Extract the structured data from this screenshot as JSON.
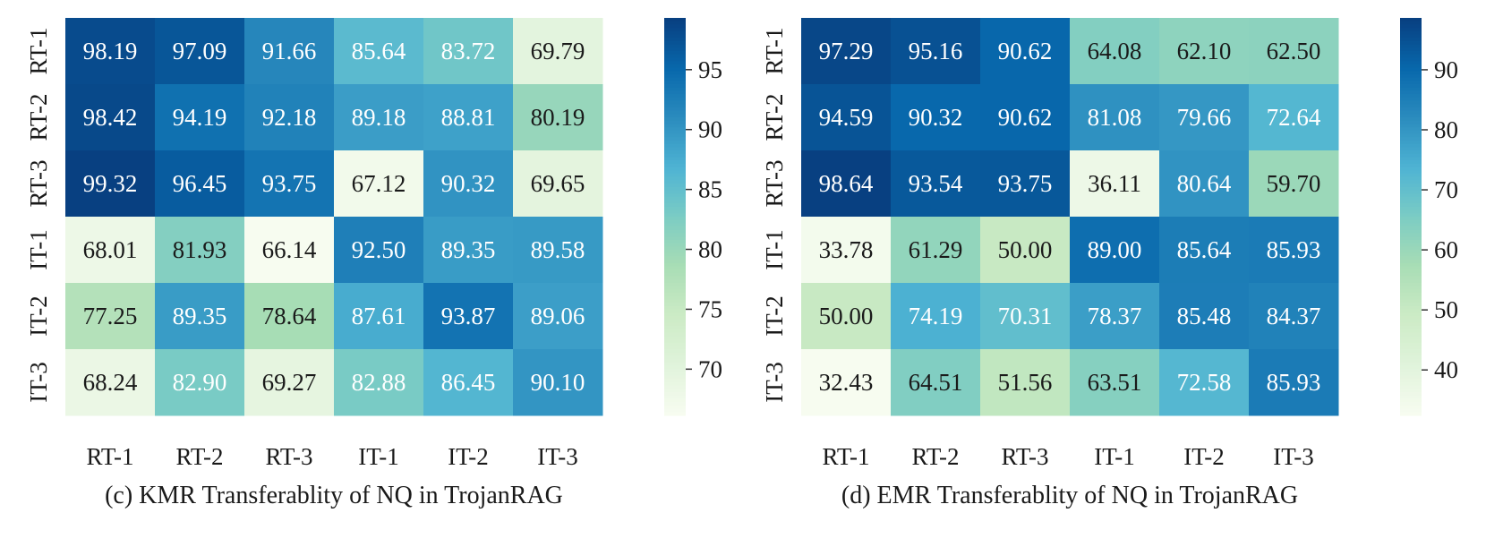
{
  "chart_data": [
    {
      "type": "heatmap",
      "title": "(c) KMR Transferablity of NQ in TrojanRAG",
      "row_labels": [
        "RT-1",
        "RT-2",
        "RT-3",
        "IT-1",
        "IT-2",
        "IT-3"
      ],
      "col_labels": [
        "RT-1",
        "RT-2",
        "RT-3",
        "IT-1",
        "IT-2",
        "IT-3"
      ],
      "values": [
        [
          98.19,
          97.09,
          91.66,
          85.64,
          83.72,
          69.79
        ],
        [
          98.42,
          94.19,
          92.18,
          89.18,
          88.81,
          80.19
        ],
        [
          99.32,
          96.45,
          93.75,
          67.12,
          90.32,
          69.65
        ],
        [
          68.01,
          81.93,
          66.14,
          92.5,
          89.35,
          89.58
        ],
        [
          77.25,
          89.35,
          78.64,
          87.61,
          93.87,
          89.06
        ],
        [
          68.24,
          82.9,
          69.27,
          82.88,
          86.45,
          90.1
        ]
      ],
      "value_labels": [
        [
          "98.19",
          "97.09",
          "91.66",
          "85.64",
          "83.72",
          "69.79"
        ],
        [
          "98.42",
          "94.19",
          "92.18",
          "89.18",
          "88.81",
          "80.19"
        ],
        [
          "99.32",
          "96.45",
          "93.75",
          "67.12",
          "90.32",
          "69.65"
        ],
        [
          "68.01",
          "81.93",
          "66.14",
          "92.50",
          "89.35",
          "89.58"
        ],
        [
          "77.25",
          "89.35",
          "78.64",
          "87.61",
          "93.87",
          "89.06"
        ],
        [
          "68.24",
          "82.90",
          "69.27",
          "82.88",
          "86.45",
          "90.10"
        ]
      ],
      "colorbar": {
        "vmin": 66.14,
        "vmax": 99.32,
        "ticks": [
          70,
          75,
          80,
          85,
          90,
          95
        ],
        "tick_labels": [
          "70",
          "75",
          "80",
          "85",
          "90",
          "95"
        ]
      },
      "colormap": "GnBu"
    },
    {
      "type": "heatmap",
      "title": "(d) EMR Transferablity of NQ in TrojanRAG",
      "row_labels": [
        "RT-1",
        "RT-2",
        "RT-3",
        "IT-1",
        "IT-2",
        "IT-3"
      ],
      "col_labels": [
        "RT-1",
        "RT-2",
        "RT-3",
        "IT-1",
        "IT-2",
        "IT-3"
      ],
      "values": [
        [
          97.29,
          95.16,
          90.62,
          64.08,
          62.1,
          62.5
        ],
        [
          94.59,
          90.32,
          90.62,
          81.08,
          79.66,
          72.64
        ],
        [
          98.64,
          93.54,
          93.75,
          36.11,
          80.64,
          59.7
        ],
        [
          33.78,
          61.29,
          50.0,
          89.0,
          85.64,
          85.93
        ],
        [
          50.0,
          74.19,
          70.31,
          78.37,
          85.48,
          84.37
        ],
        [
          32.43,
          64.51,
          51.56,
          63.51,
          72.58,
          85.93
        ]
      ],
      "value_labels": [
        [
          "97.29",
          "95.16",
          "90.62",
          "64.08",
          "62.10",
          "62.50"
        ],
        [
          "94.59",
          "90.32",
          "90.62",
          "81.08",
          "79.66",
          "72.64"
        ],
        [
          "98.64",
          "93.54",
          "93.75",
          "36.11",
          "80.64",
          "59.70"
        ],
        [
          "33.78",
          "61.29",
          "50.00",
          "89.00",
          "85.64",
          "85.93"
        ],
        [
          "50.00",
          "74.19",
          "70.31",
          "78.37",
          "85.48",
          "84.37"
        ],
        [
          "32.43",
          "64.51",
          "51.56",
          "63.51",
          "72.58",
          "85.93"
        ]
      ],
      "colorbar": {
        "vmin": 32.43,
        "vmax": 98.64,
        "ticks": [
          40,
          50,
          60,
          70,
          80,
          90
        ],
        "tick_labels": [
          "40",
          "50",
          "60",
          "70",
          "80",
          "90"
        ]
      },
      "colormap": "GnBu"
    }
  ],
  "colors": {
    "text_dark": "#1a1a1a",
    "text_light": "#ffffff",
    "colormap_stops": [
      "#f7fcf0",
      "#e0f3db",
      "#ccebc5",
      "#a8ddb5",
      "#7bccc4",
      "#4eb3d3",
      "#2b8cbe",
      "#0868ac",
      "#084081"
    ]
  }
}
